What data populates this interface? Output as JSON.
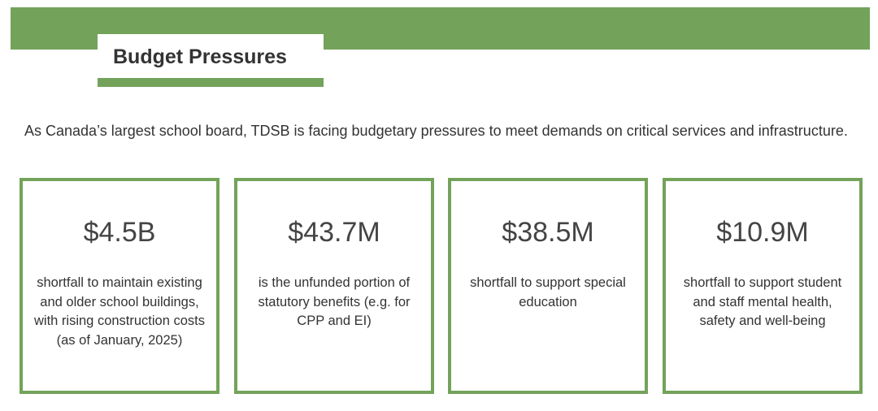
{
  "header": {
    "title": "Budget Pressures",
    "accent_color": "#73a35a"
  },
  "intro": {
    "text": "As Canada’s largest school board, TDSB is facing budgetary pressures to meet demands on critical services and infrastructure."
  },
  "cards": [
    {
      "value": "$4.5B",
      "description": "shortfall to maintain existing and older school buildings, with rising construction costs (as of January, 2025)"
    },
    {
      "value": "$43.7M",
      "description": "is the unfunded portion of statutory benefits (e.g. for CPP and EI)"
    },
    {
      "value": "$38.5M",
      "description": "shortfall to support special education"
    },
    {
      "value": "$10.9M",
      "description": "shortfall to support student and staff mental health, safety and well-being"
    }
  ]
}
